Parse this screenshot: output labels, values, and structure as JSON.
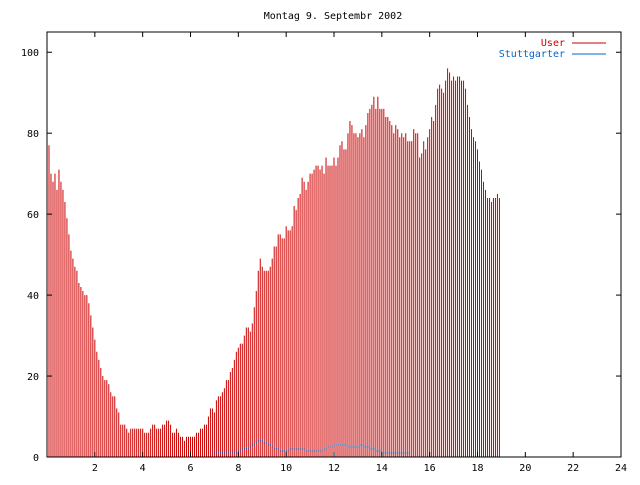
{
  "chart_data": {
    "type": "bar",
    "title": "Montag 9. Septembr 2002",
    "xlabel": "",
    "ylabel": "",
    "xlim": [
      0,
      24
    ],
    "ylim": [
      0,
      105
    ],
    "x_ticks": [
      2,
      4,
      6,
      8,
      10,
      12,
      14,
      16,
      18,
      20,
      22,
      24
    ],
    "y_ticks": [
      0,
      20,
      40,
      60,
      80,
      100
    ],
    "grid": false,
    "legend_position": "top-right",
    "samples_per_hour": 12,
    "series": [
      {
        "name": "User",
        "color": "#cc0000",
        "style": "impulses",
        "values": [
          77,
          77,
          70,
          68,
          70,
          66,
          71,
          68,
          66,
          63,
          59,
          55,
          51,
          49,
          47,
          46,
          43,
          42,
          41,
          40,
          40,
          38,
          35,
          32,
          29,
          26,
          24,
          22,
          20,
          19,
          19,
          18,
          16,
          15,
          15,
          12,
          11,
          8,
          8,
          8,
          7,
          6,
          7,
          7,
          7,
          7,
          7,
          7,
          7,
          6,
          6,
          6,
          7,
          8,
          8,
          7,
          7,
          7,
          8,
          8,
          9,
          9,
          8,
          6,
          6,
          7,
          6,
          5,
          5,
          4,
          5,
          5,
          5,
          5,
          5,
          6,
          6,
          7,
          7,
          8,
          8,
          10,
          12,
          12,
          11,
          14,
          15,
          15,
          16,
          17,
          19,
          19,
          21,
          22,
          24,
          26,
          27,
          28,
          28,
          30,
          32,
          32,
          31,
          33,
          37,
          41,
          46,
          49,
          47,
          46,
          46,
          46,
          47,
          49,
          52,
          52,
          55,
          55,
          54,
          54,
          57,
          56,
          56,
          57,
          62,
          61,
          64,
          65,
          69,
          68,
          66,
          68,
          70,
          70,
          71,
          72,
          72,
          71,
          72,
          70,
          74,
          72,
          72,
          72,
          74,
          72,
          74,
          77,
          78,
          76,
          76,
          80,
          83,
          82,
          80,
          80,
          79,
          80,
          81,
          79,
          82,
          85,
          86,
          87,
          89,
          86,
          89,
          86,
          86,
          86,
          84,
          84,
          83,
          82,
          80,
          82,
          81,
          79,
          80,
          79,
          80,
          78,
          78,
          78,
          81,
          80,
          80,
          74,
          75,
          78,
          76,
          79,
          81,
          84,
          83,
          87,
          91,
          92,
          91,
          90,
          93,
          96,
          95,
          93,
          94,
          93,
          94,
          94,
          93,
          93,
          91,
          87,
          84,
          81,
          79,
          78,
          76,
          73,
          71,
          68,
          66,
          64,
          64,
          63,
          64,
          64,
          65,
          64
        ]
      },
      {
        "name": "Stuttgarter",
        "color": "#0066cc",
        "style": "dots",
        "values": [
          0,
          0,
          0,
          0,
          0,
          0,
          0,
          0,
          0,
          0,
          0,
          0,
          0,
          0,
          0,
          0,
          0,
          0,
          0,
          0,
          0,
          0,
          0,
          0,
          0,
          0,
          0,
          0,
          0,
          0,
          0,
          0,
          0,
          0,
          0,
          0,
          0,
          0,
          0,
          0,
          0,
          0,
          0,
          0,
          0,
          0,
          0,
          0,
          0,
          0,
          0,
          0,
          0,
          0,
          0,
          0,
          0,
          0,
          0,
          0,
          0,
          0,
          0,
          0,
          0,
          0,
          0,
          0,
          0,
          0,
          0,
          0,
          0,
          0,
          0,
          0,
          0,
          0,
          0,
          0,
          0,
          0,
          0,
          0,
          1,
          1,
          1,
          1,
          1,
          1,
          1,
          1,
          1,
          1,
          1,
          1,
          1.5,
          1.5,
          2,
          2,
          2,
          2,
          2.5,
          3,
          3,
          3.5,
          4,
          4,
          4,
          3.5,
          3.5,
          3,
          3,
          2.5,
          2,
          2,
          2,
          1.5,
          1.5,
          1.5,
          1.5,
          1.5,
          2,
          2,
          2,
          2,
          2,
          2,
          2,
          2,
          1.5,
          1.5,
          1.5,
          1.5,
          1.5,
          1.5,
          1.5,
          1.5,
          1.5,
          2,
          2,
          2.5,
          2.5,
          2.5,
          3,
          3,
          3,
          3,
          3,
          3,
          3,
          2.5,
          2.5,
          2.5,
          2.5,
          2.5,
          2.5,
          3,
          3,
          2.5,
          2.5,
          2.5,
          2,
          2,
          2,
          1.5,
          1.5,
          1.5,
          1,
          1,
          1,
          1,
          1,
          1,
          1,
          1,
          1,
          1,
          1,
          1,
          1,
          1,
          0,
          0,
          0,
          0,
          0,
          0,
          0,
          0,
          0,
          0,
          0,
          0,
          0,
          0,
          0,
          0,
          0,
          0,
          0,
          0,
          0,
          0,
          0,
          0,
          0,
          0,
          0,
          0,
          0,
          0,
          0,
          0,
          0,
          0,
          0,
          0,
          0,
          0,
          0,
          0,
          0,
          0,
          0,
          0,
          0,
          0
        ]
      }
    ]
  }
}
